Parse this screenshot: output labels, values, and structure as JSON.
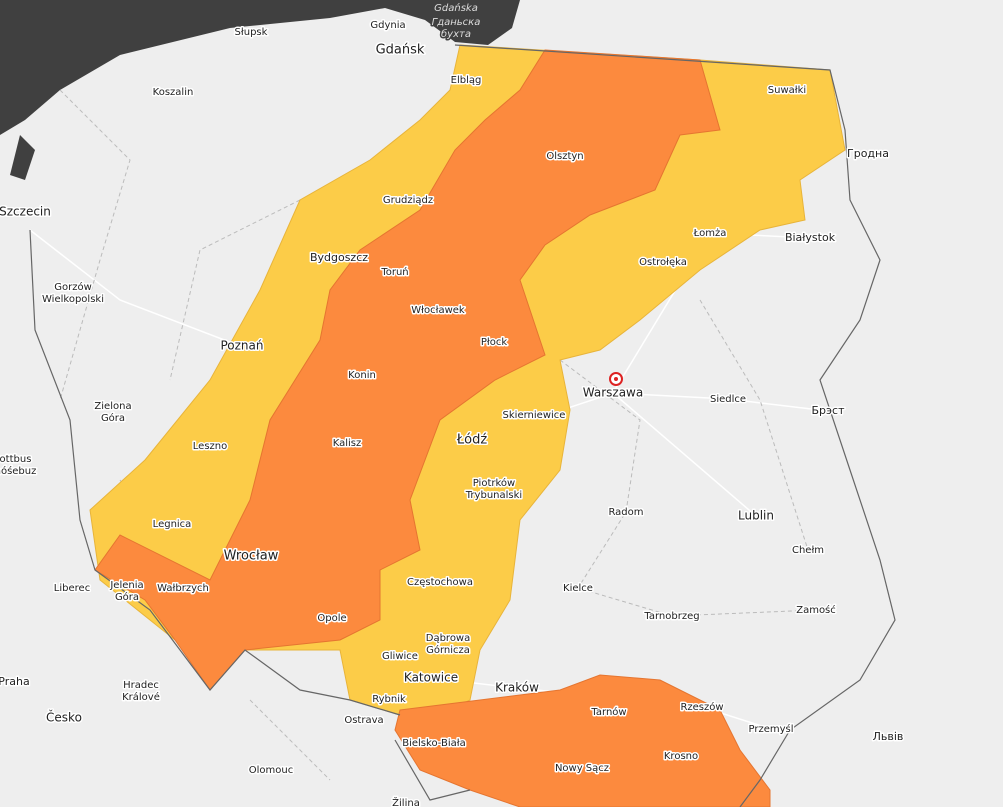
{
  "map": {
    "places": [
      {
        "label": "Gdańska"
      },
      {
        "label": "Гданьска бухта"
      },
      {
        "label": "Gdynia"
      },
      {
        "label": "Gdańsk"
      },
      {
        "label": "Słupsk"
      },
      {
        "label": "Koszalin"
      },
      {
        "label": "Elbląg"
      },
      {
        "label": "Suwałki"
      },
      {
        "label": "Olsztyn"
      },
      {
        "label": "Гродна"
      },
      {
        "label": "Szczecin"
      },
      {
        "label": "Grudziądz"
      },
      {
        "label": "Bydgoszcz"
      },
      {
        "label": "Toruń"
      },
      {
        "label": "Łomża"
      },
      {
        "label": "Białystok"
      },
      {
        "label": "Ostrołęka"
      },
      {
        "label": "Gorzów Wielkopolski"
      },
      {
        "label": "Włocławek"
      },
      {
        "label": "Płock"
      },
      {
        "label": "Poznań"
      },
      {
        "label": "Konin"
      },
      {
        "label": "Warszawa"
      },
      {
        "label": "Siedlce"
      },
      {
        "label": "Брэст"
      },
      {
        "label": "Zielona Góra"
      },
      {
        "label": "Skierniewice"
      },
      {
        "label": "Leszno"
      },
      {
        "label": "Kalisz"
      },
      {
        "label": "Łódź"
      },
      {
        "label": "Cottbus Chóśebuz"
      },
      {
        "label": "Piotrków Trybunalski"
      },
      {
        "label": "Radom"
      },
      {
        "label": "Lublin"
      },
      {
        "label": "Legnica"
      },
      {
        "label": "Wrocław"
      },
      {
        "label": "Chełm"
      },
      {
        "label": "Liberec"
      },
      {
        "label": "Jelenia Góra"
      },
      {
        "label": "Wałbrzych"
      },
      {
        "label": "Częstochowa"
      },
      {
        "label": "Kielce"
      },
      {
        "label": "Zamość"
      },
      {
        "label": "Opole"
      },
      {
        "label": "Tarnobrzeg"
      },
      {
        "label": "Dąbrowa Górnicza"
      },
      {
        "label": "Gliwice"
      },
      {
        "label": "Katowice"
      },
      {
        "label": "Praha"
      },
      {
        "label": "Hradec Králové"
      },
      {
        "label": "Kraków"
      },
      {
        "label": "Rybnik"
      },
      {
        "label": "Rzeszów"
      },
      {
        "label": "Tarnów"
      },
      {
        "label": "Ostrava"
      },
      {
        "label": "Česko"
      },
      {
        "label": "Bielsko-Biała"
      },
      {
        "label": "Przemyśl"
      },
      {
        "label": "Львів"
      },
      {
        "label": "Krosno"
      },
      {
        "label": "Nowy Sącz"
      },
      {
        "label": "Olomouc"
      },
      {
        "label": "Žilina"
      }
    ]
  }
}
